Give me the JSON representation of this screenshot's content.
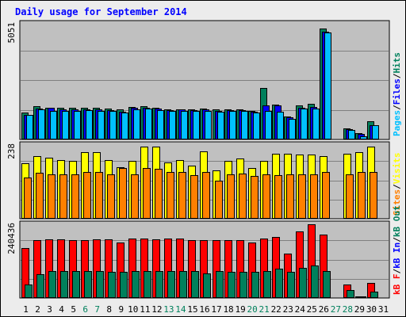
{
  "colors": {
    "hits": "#00805c",
    "files": "#0000ff",
    "pages": "#00c0ff",
    "visits": "#ffff00",
    "sites": "#ff8000",
    "kbin": "#ff0000",
    "kbout": "#00805c",
    "weekend_label": "#00805c",
    "weekday_label": "#000000",
    "title": "#0000ff",
    "panel_bg": "#c0c0c0",
    "gridline": "#808080"
  },
  "chart_data": {
    "title": "Daily usage for September 2014",
    "type": "bar",
    "days": [
      "1",
      "2",
      "3",
      "4",
      "5",
      "6",
      "7",
      "8",
      "9",
      "10",
      "11",
      "12",
      "13",
      "14",
      "15",
      "16",
      "17",
      "18",
      "19",
      "20",
      "21",
      "22",
      "23",
      "24",
      "25",
      "26",
      "27",
      "28",
      "29",
      "30",
      "31"
    ],
    "weekend_days": [
      6,
      7,
      13,
      14,
      20,
      21,
      27,
      28
    ],
    "panels": [
      {
        "id": "hits",
        "ymax_label": "5051",
        "ymax": 5051,
        "legend": [
          {
            "label": "Pages",
            "key": "pages"
          },
          {
            "label": "/",
            "key": "sep"
          },
          {
            "label": "Files",
            "key": "files"
          },
          {
            "label": "/",
            "key": "sep"
          },
          {
            "label": "Hits",
            "key": "hits"
          }
        ],
        "series": [
          {
            "name": "Hits",
            "key": "hits",
            "values": [
              1190,
              1460,
              1390,
              1380,
              1370,
              1390,
              1380,
              1340,
              1320,
              1410,
              1450,
              1390,
              1320,
              1330,
              1310,
              1340,
              1310,
              1320,
              1320,
              1260,
              2250,
              1510,
              1010,
              1490,
              1550,
              4850,
              0,
              470,
              270,
              790,
              0
            ]
          },
          {
            "name": "Files",
            "key": "files",
            "values": [
              1080,
              1350,
              1390,
              1300,
              1300,
              1300,
              1300,
              1290,
              1210,
              1380,
              1400,
              1340,
              1280,
              1300,
              1290,
              1300,
              1250,
              1280,
              1280,
              1210,
              1480,
              1500,
              960,
              1380,
              1430,
              4700,
              0,
              450,
              230,
              610,
              0
            ]
          },
          {
            "name": "Pages",
            "key": "pages",
            "values": [
              1080,
              1300,
              1240,
              1240,
              1240,
              1290,
              1260,
              1240,
              1160,
              1300,
              1340,
              1290,
              1240,
              1240,
              1240,
              1240,
              1200,
              1240,
              1240,
              1160,
              1240,
              1210,
              910,
              1340,
              1360,
              4670,
              0,
              420,
              150,
              610,
              0
            ]
          }
        ]
      },
      {
        "id": "visits",
        "ymax_label": "238",
        "ymax": 238,
        "legend": [
          {
            "label": "Sites",
            "key": "sites"
          },
          {
            "label": "/",
            "key": "sep"
          },
          {
            "label": "Visits",
            "key": "visits"
          }
        ],
        "series": [
          {
            "name": "Visits",
            "key": "visits",
            "values": [
              178,
              201,
              198,
              189,
              188,
              214,
              215,
              189,
              166,
              187,
              233,
              233,
              181,
              189,
              172,
              218,
              156,
              186,
              194,
              165,
              188,
              209,
              210,
              207,
              208,
              201,
              0,
              209,
              214,
              233,
              0
            ]
          },
          {
            "name": "Sites",
            "key": "sites",
            "values": [
              133,
              149,
              144,
              144,
              144,
              150,
              150,
              144,
              163,
              144,
              163,
              160,
              150,
              150,
              142,
              150,
              122,
              144,
              145,
              137,
              144,
              142,
              143,
              144,
              144,
              150,
              0,
              144,
              150,
              150,
              0
            ]
          }
        ]
      },
      {
        "id": "kbytes",
        "ymax_label": "240436",
        "ymax": 240436,
        "legend": [
          {
            "label": "kB F",
            "key": "kbin"
          },
          {
            "label": "/",
            "key": "sep"
          },
          {
            "label": "kB In",
            "key": "files"
          },
          {
            "label": "/",
            "key": "sep"
          },
          {
            "label": "kB Out",
            "key": "kbout"
          }
        ],
        "series": [
          {
            "name": "kB F",
            "key": "kbin",
            "values": [
              164000,
              190000,
              191000,
              191000,
              190000,
              190000,
              191000,
              191000,
              182000,
              194000,
              194000,
              191000,
              193000,
              193000,
              190000,
              189000,
              190000,
              188000,
              190000,
              180000,
              194000,
              198000,
              144000,
              216000,
              240436,
              208000,
              0,
              43000,
              5000,
              49000,
              0
            ]
          },
          {
            "name": "kB Out",
            "key": "kbout",
            "values": [
              45000,
              77000,
              87000,
              88000,
              88000,
              88000,
              88000,
              86000,
              86000,
              88000,
              88000,
              88000,
              88000,
              88000,
              87000,
              81000,
              88000,
              85000,
              86000,
              86000,
              88000,
              95000,
              85000,
              98000,
              105000,
              89000,
              0,
              26000,
              5000,
              21000,
              0
            ]
          }
        ]
      }
    ]
  }
}
